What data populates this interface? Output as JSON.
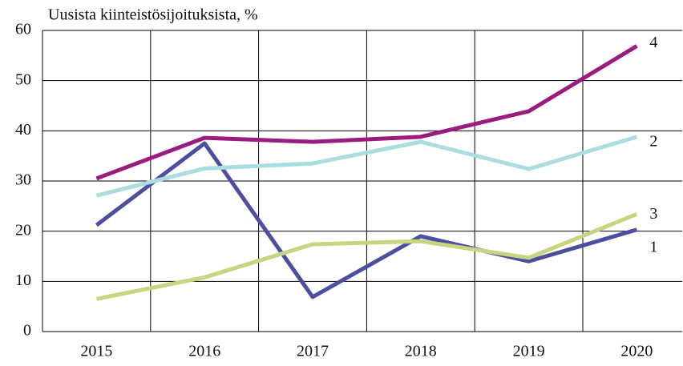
{
  "chart_data": {
    "type": "line",
    "title": "Uusista kiinteistösijoituksista, %",
    "categories": [
      "2015",
      "2016",
      "2017",
      "2018",
      "2019",
      "2020"
    ],
    "series": [
      {
        "name": "1",
        "color": "#4b4f9e",
        "values": [
          21.2,
          37.5,
          6.9,
          19,
          14,
          20.3
        ]
      },
      {
        "name": "2",
        "color": "#a9dde0",
        "values": [
          27.1,
          32.5,
          33.5,
          37.8,
          32.4,
          38.8
        ]
      },
      {
        "name": "3",
        "color": "#c6d57f",
        "values": [
          6.5,
          10.8,
          17.4,
          18,
          14.7,
          23.4
        ]
      },
      {
        "name": "4",
        "color": "#9b1b7e",
        "values": [
          30.5,
          38.6,
          37.8,
          38.8,
          43.9,
          56.9
        ]
      }
    ],
    "ylim": [
      0,
      60
    ],
    "yticks": [
      0,
      10,
      20,
      30,
      40,
      50,
      60
    ],
    "grid": true
  }
}
